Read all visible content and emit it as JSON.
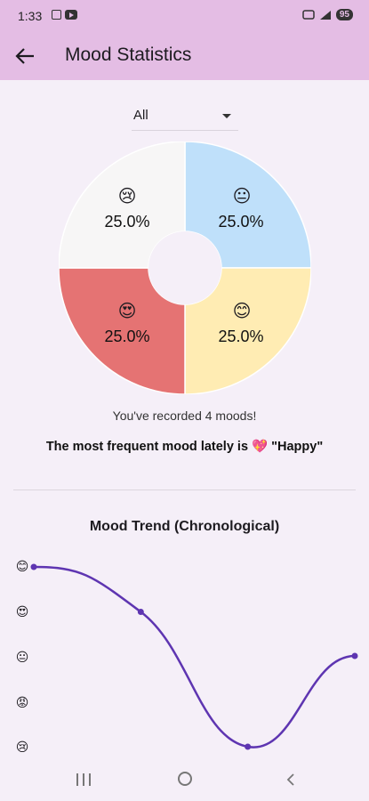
{
  "status_bar": {
    "time": "1:33",
    "battery": "95"
  },
  "app_bar": {
    "title": "Mood Statistics"
  },
  "filter": {
    "selected": "All"
  },
  "pie": {
    "colors": {
      "sad": "#f7f6f6",
      "neutral": "#bfe0fa",
      "love": "#e57373",
      "happy": "#ffecb3"
    },
    "slices": [
      {
        "mood": "sad",
        "emoji": "😢",
        "label": "25.0%",
        "value": 25
      },
      {
        "mood": "neutral",
        "emoji": "😐",
        "label": "25.0%",
        "value": 25
      },
      {
        "mood": "love",
        "emoji": "😍",
        "label": "25.0%",
        "value": 25
      },
      {
        "mood": "happy",
        "emoji": "😊",
        "label": "25.0%",
        "value": 25
      }
    ]
  },
  "summary": {
    "recorded": "You've recorded 4 moods!",
    "frequent": "The most frequent mood lately is 💖 \"Happy\""
  },
  "trend": {
    "title": "Mood Trend (Chronological)",
    "y_emojis": [
      "😊",
      "😍",
      "😐",
      "😡",
      "😢"
    ],
    "line_color": "#5e35b1"
  },
  "chart_data": {
    "type": "line",
    "title": "Mood Trend (Chronological)",
    "y_categories": [
      "😊",
      "😍",
      "😐",
      "😡",
      "😢"
    ],
    "x": [
      1,
      2,
      3,
      4
    ],
    "series": [
      {
        "values": [
          5,
          4,
          1,
          3.02
        ]
      }
    ],
    "ylim": [
      1,
      5
    ]
  }
}
